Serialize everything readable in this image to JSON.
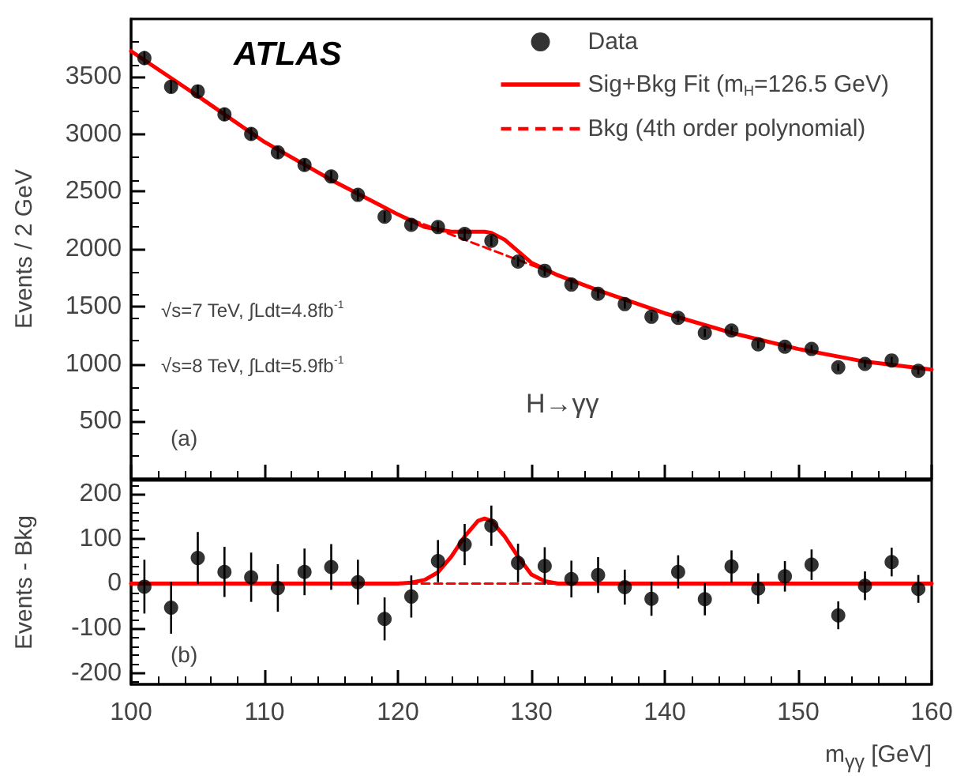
{
  "chart_data": [
    {
      "type": "scatter",
      "ylabel": "Events / 2 GeV",
      "legend": "top right",
      "tick_labels": "y",
      "grid": false,
      "xlim": [
        100,
        160
      ],
      "xticks": [
        100,
        110,
        120,
        130,
        140,
        150,
        160
      ],
      "ylim": [
        0,
        4000
      ],
      "yticks": [
        500,
        1000,
        1500,
        2000,
        2500,
        3000,
        3500
      ],
      "annotations": [
        "ATLAS",
        "√s=7 TeV, ∫Ldt=4.8fb$^{-1}$",
        "√s=8 TeV, ∫Ldt=5.9fb$^{-1}$",
        "H→γγ",
        "(a)"
      ],
      "series": [
        {
          "name": "Data",
          "type": "scatter",
          "marker": "circle",
          "color": "#000000",
          "x": [
            101,
            103,
            105,
            107,
            109,
            111,
            113,
            115,
            117,
            119,
            121,
            123,
            125,
            127,
            129,
            131,
            133,
            135,
            137,
            139,
            141,
            143,
            145,
            147,
            149,
            151,
            153,
            155,
            157,
            159
          ],
          "values": [
            3660,
            3410,
            3370,
            3170,
            3000,
            2840,
            2730,
            2630,
            2470,
            2280,
            2210,
            2190,
            2130,
            2070,
            1890,
            1810,
            1690,
            1610,
            1520,
            1410,
            1400,
            1270,
            1290,
            1170,
            1150,
            1130,
            970,
            1000,
            1030,
            940
          ],
          "errors": [
            60,
            58,
            58,
            56,
            55,
            53,
            52,
            51,
            50,
            48,
            47,
            47,
            46,
            45,
            43,
            42,
            41,
            40,
            39,
            38,
            37,
            36,
            36,
            34,
            34,
            34,
            31,
            32,
            32,
            31
          ]
        },
        {
          "name": "Sig+Bkg Fit (m$_{H}$=126.5 GeV)",
          "type": "line",
          "marker": "none",
          "line_style": "solid",
          "color": "#ff0000",
          "x": [
            100,
            105,
            110,
            115,
            120,
            122,
            124,
            125,
            126,
            126.5,
            127,
            128,
            129,
            130,
            132,
            135,
            140,
            145,
            150,
            155,
            160
          ],
          "values": [
            3720,
            3330,
            2930,
            2600,
            2300,
            2190,
            2150,
            2150,
            2150,
            2150,
            2140,
            2080,
            1980,
            1880,
            1770,
            1640,
            1440,
            1270,
            1130,
            1020,
            950
          ]
        },
        {
          "name": "Bkg (4th order polynomial)",
          "type": "line",
          "marker": "none",
          "line_style": "dashed",
          "color": "#ff0000",
          "x": [
            100,
            105,
            110,
            115,
            120,
            125,
            130,
            135,
            140,
            145,
            150,
            155,
            160
          ],
          "values": [
            3720,
            3330,
            2930,
            2600,
            2300,
            2080,
            1860,
            1640,
            1440,
            1270,
            1130,
            1020,
            950
          ]
        }
      ]
    },
    {
      "type": "scatter",
      "xlabel": "m$_{γγ}$ [GeV]",
      "ylabel": "Events - Bkg",
      "legend": false,
      "grid": false,
      "xlim": [
        100,
        160
      ],
      "xticks": [
        100,
        110,
        120,
        130,
        140,
        150,
        160
      ],
      "ylim": [
        -225,
        230
      ],
      "yticks": [
        -200,
        -100,
        0,
        100,
        200
      ],
      "annotations": [
        "(b)"
      ],
      "series": [
        {
          "type": "scatter",
          "marker": "circle",
          "color": "#000000",
          "x": [
            101,
            103,
            105,
            107,
            109,
            111,
            113,
            115,
            117,
            119,
            121,
            123,
            125,
            127,
            129,
            131,
            133,
            135,
            137,
            139,
            141,
            143,
            145,
            147,
            149,
            151,
            153,
            155,
            157,
            159
          ],
          "values": [
            -7,
            -54,
            57,
            26,
            14,
            -10,
            26,
            37,
            3,
            -79,
            -29,
            50,
            87,
            129,
            46,
            39,
            10,
            19,
            -8,
            -34,
            26,
            -35,
            38,
            -11,
            16,
            42,
            -71,
            -5,
            48,
            -12
          ],
          "errors": [
            60,
            58,
            58,
            56,
            55,
            53,
            52,
            51,
            50,
            48,
            47,
            47,
            46,
            45,
            43,
            42,
            41,
            40,
            39,
            38,
            37,
            36,
            36,
            34,
            34,
            34,
            31,
            32,
            32,
            31
          ]
        },
        {
          "type": "line",
          "marker": "none",
          "line_style": "dashed",
          "color": "#ff0000",
          "x": [
            100,
            160
          ],
          "values": [
            0,
            0
          ]
        },
        {
          "type": "line",
          "marker": "none",
          "line_style": "solid",
          "color": "#ff0000",
          "x": [
            100,
            120,
            121,
            122,
            123,
            124,
            125,
            126,
            126.5,
            127,
            128,
            129,
            130,
            131,
            132,
            160
          ],
          "values": [
            0,
            0,
            2,
            8,
            25,
            60,
            105,
            140,
            145,
            140,
            105,
            60,
            20,
            5,
            0,
            0
          ]
        }
      ]
    }
  ]
}
